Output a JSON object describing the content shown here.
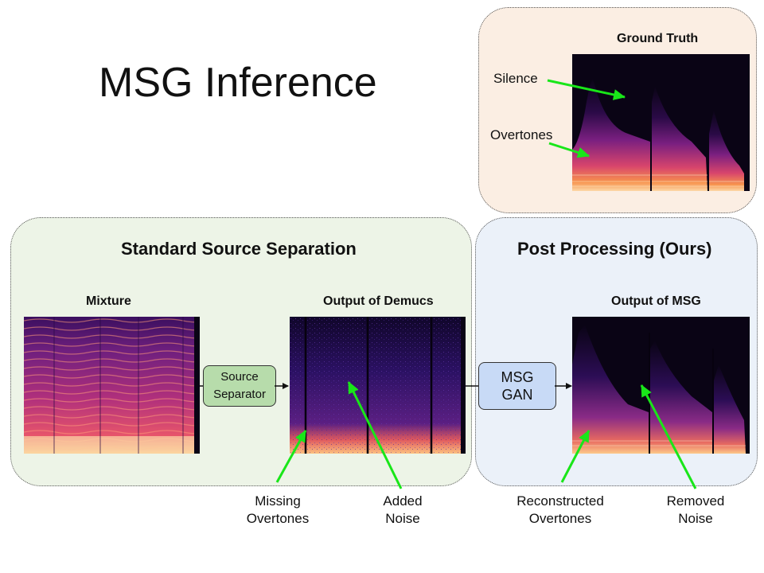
{
  "title": "MSG Inference",
  "panels": {
    "ground_truth": {
      "title": "Ground Truth"
    },
    "standard": {
      "title": "Standard Source Separation"
    },
    "post": {
      "title": "Post Processing (Ours)"
    }
  },
  "spectrograms": {
    "mixture": "Mixture",
    "demucs": "Output of Demucs",
    "msg": "Output of MSG"
  },
  "boxes": {
    "separator_line1": "Source",
    "separator_line2": "Separator",
    "msg_line1": "MSG",
    "msg_line2": "GAN"
  },
  "annotations": {
    "silence": "Silence",
    "overtones": "Overtones",
    "missing_line1": "Missing",
    "missing_line2": "Overtones",
    "added_line1": "Added",
    "added_line2": "Noise",
    "reconstructed_line1": "Reconstructed",
    "reconstructed_line2": "Overtones",
    "removed_line1": "Removed",
    "removed_line2": "Noise"
  },
  "colors": {
    "arrow_green": "#19e619",
    "gt_panel": "#fbeee3",
    "standard_panel": "#edf4e7",
    "post_panel": "#ebf1f9",
    "separator_box": "#b7dcab",
    "msg_box": "#c8daf6"
  }
}
